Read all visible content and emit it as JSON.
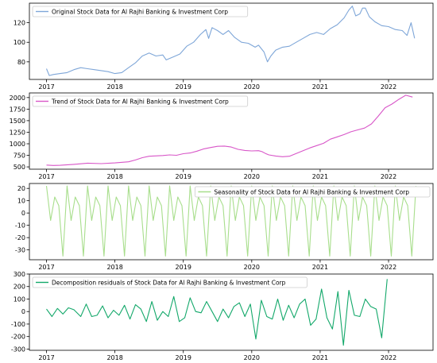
{
  "chart_data": [
    {
      "type": "line",
      "series": [
        {
          "name": "Original Stock Data for Al Rajhi Banking & Investment Corp",
          "color": "#7ea6d8"
        }
      ],
      "x_ticks": [
        "2017",
        "2018",
        "2019",
        "2020",
        "2021",
        "2022"
      ],
      "y_ticks": [
        "80",
        "100",
        "120"
      ],
      "xlim": [
        2016.75,
        2022.65
      ],
      "ylim": [
        62,
        140
      ],
      "legend": "upper-left",
      "points": [
        [
          2017.0,
          73
        ],
        [
          2017.04,
          66
        ],
        [
          2017.1,
          67
        ],
        [
          2017.2,
          68
        ],
        [
          2017.3,
          69
        ],
        [
          2017.4,
          72
        ],
        [
          2017.5,
          74
        ],
        [
          2017.6,
          73
        ],
        [
          2017.7,
          72
        ],
        [
          2017.8,
          71
        ],
        [
          2017.9,
          70
        ],
        [
          2018.0,
          68
        ],
        [
          2018.1,
          69
        ],
        [
          2018.2,
          74
        ],
        [
          2018.3,
          79
        ],
        [
          2018.4,
          86
        ],
        [
          2018.5,
          89
        ],
        [
          2018.6,
          86
        ],
        [
          2018.7,
          87
        ],
        [
          2018.75,
          82
        ],
        [
          2018.85,
          85
        ],
        [
          2018.95,
          88
        ],
        [
          2019.05,
          96
        ],
        [
          2019.15,
          100
        ],
        [
          2019.25,
          108
        ],
        [
          2019.33,
          113
        ],
        [
          2019.37,
          104
        ],
        [
          2019.42,
          115
        ],
        [
          2019.5,
          112
        ],
        [
          2019.58,
          108
        ],
        [
          2019.66,
          112
        ],
        [
          2019.75,
          105
        ],
        [
          2019.85,
          100
        ],
        [
          2019.95,
          99
        ],
        [
          2020.05,
          95
        ],
        [
          2020.1,
          97
        ],
        [
          2020.18,
          90
        ],
        [
          2020.23,
          80
        ],
        [
          2020.28,
          86
        ],
        [
          2020.35,
          92
        ],
        [
          2020.45,
          95
        ],
        [
          2020.55,
          96
        ],
        [
          2020.65,
          100
        ],
        [
          2020.75,
          104
        ],
        [
          2020.85,
          108
        ],
        [
          2020.95,
          110
        ],
        [
          2021.05,
          108
        ],
        [
          2021.15,
          114
        ],
        [
          2021.25,
          118
        ],
        [
          2021.35,
          125
        ],
        [
          2021.42,
          133
        ],
        [
          2021.47,
          137
        ],
        [
          2021.52,
          127
        ],
        [
          2021.58,
          129
        ],
        [
          2021.62,
          135
        ],
        [
          2021.66,
          135
        ],
        [
          2021.72,
          126
        ],
        [
          2021.8,
          121
        ],
        [
          2021.9,
          117
        ],
        [
          2022.0,
          116
        ],
        [
          2022.1,
          113
        ],
        [
          2022.2,
          112
        ],
        [
          2022.27,
          107
        ],
        [
          2022.33,
          120
        ],
        [
          2022.38,
          104
        ]
      ]
    },
    {
      "type": "line",
      "series": [
        {
          "name": "Trend of Stock Data for Al Rajhi Banking & Investment Corp",
          "color": "#d856c8"
        }
      ],
      "x_ticks": [
        "2017",
        "2018",
        "2019",
        "2020",
        "2021",
        "2022"
      ],
      "y_ticks": [
        "500",
        "750",
        "1000",
        "1250",
        "1500",
        "1750",
        "2000"
      ],
      "xlim": [
        2016.75,
        2022.65
      ],
      "ylim": [
        450,
        2100
      ],
      "legend": "upper-left",
      "points": [
        [
          2017.0,
          540
        ],
        [
          2017.1,
          530
        ],
        [
          2017.2,
          535
        ],
        [
          2017.4,
          555
        ],
        [
          2017.6,
          580
        ],
        [
          2017.8,
          570
        ],
        [
          2018.0,
          585
        ],
        [
          2018.2,
          610
        ],
        [
          2018.3,
          650
        ],
        [
          2018.4,
          700
        ],
        [
          2018.5,
          730
        ],
        [
          2018.7,
          745
        ],
        [
          2018.8,
          760
        ],
        [
          2018.9,
          750
        ],
        [
          2019.0,
          785
        ],
        [
          2019.1,
          800
        ],
        [
          2019.2,
          840
        ],
        [
          2019.3,
          890
        ],
        [
          2019.4,
          920
        ],
        [
          2019.5,
          945
        ],
        [
          2019.6,
          950
        ],
        [
          2019.7,
          930
        ],
        [
          2019.8,
          880
        ],
        [
          2019.9,
          855
        ],
        [
          2020.0,
          845
        ],
        [
          2020.1,
          850
        ],
        [
          2020.15,
          830
        ],
        [
          2020.2,
          790
        ],
        [
          2020.25,
          760
        ],
        [
          2020.35,
          735
        ],
        [
          2020.45,
          720
        ],
        [
          2020.55,
          730
        ],
        [
          2020.65,
          790
        ],
        [
          2020.75,
          850
        ],
        [
          2020.85,
          910
        ],
        [
          2020.95,
          960
        ],
        [
          2021.05,
          1010
        ],
        [
          2021.15,
          1100
        ],
        [
          2021.25,
          1150
        ],
        [
          2021.35,
          1200
        ],
        [
          2021.45,
          1260
        ],
        [
          2021.55,
          1300
        ],
        [
          2021.65,
          1340
        ],
        [
          2021.75,
          1430
        ],
        [
          2021.85,
          1600
        ],
        [
          2021.95,
          1780
        ],
        [
          2022.05,
          1860
        ],
        [
          2022.15,
          1960
        ],
        [
          2022.25,
          2050
        ],
        [
          2022.35,
          2010
        ]
      ]
    },
    {
      "type": "line",
      "series": [
        {
          "name": "Seasonality of Stock Data for Al Rajhi Banking & Investment Corp",
          "color": "#a8de8c"
        }
      ],
      "x_ticks": [
        "2017",
        "2018",
        "2019",
        "2020",
        "2021",
        "2022"
      ],
      "y_ticks": [
        "20",
        "10",
        "0",
        "-10",
        "-20",
        "-30"
      ],
      "xlim": [
        2016.75,
        2022.65
      ],
      "ylim": [
        -38,
        24
      ],
      "legend": "upper-right",
      "period_pattern": [
        22,
        -6,
        13,
        6,
        -35,
        22,
        -6,
        13,
        6,
        -35
      ],
      "points": []
    },
    {
      "type": "line",
      "series": [
        {
          "name": "Decomposition residuals of Stock Data for Al Rajhi Banking & Investment Corp",
          "color": "#13a86a"
        }
      ],
      "x_ticks": [
        "2017",
        "2018",
        "2019",
        "2020",
        "2021",
        "2022"
      ],
      "y_ticks": [
        "300",
        "200",
        "100",
        "0",
        "-100",
        "-200",
        "-300"
      ],
      "xlim": [
        2016.75,
        2022.65
      ],
      "ylim": [
        -310,
        300
      ],
      "legend": "upper-left",
      "points": [
        [
          2017.0,
          20
        ],
        [
          2017.08,
          -40
        ],
        [
          2017.16,
          25
        ],
        [
          2017.24,
          -20
        ],
        [
          2017.32,
          30
        ],
        [
          2017.4,
          15
        ],
        [
          2017.5,
          -40
        ],
        [
          2017.58,
          60
        ],
        [
          2017.66,
          -40
        ],
        [
          2017.74,
          -30
        ],
        [
          2017.82,
          45
        ],
        [
          2017.9,
          -50
        ],
        [
          2017.98,
          10
        ],
        [
          2018.06,
          -30
        ],
        [
          2018.14,
          50
        ],
        [
          2018.22,
          -60
        ],
        [
          2018.3,
          55
        ],
        [
          2018.38,
          20
        ],
        [
          2018.46,
          -80
        ],
        [
          2018.54,
          80
        ],
        [
          2018.62,
          -70
        ],
        [
          2018.7,
          0
        ],
        [
          2018.78,
          -40
        ],
        [
          2018.86,
          120
        ],
        [
          2018.94,
          -80
        ],
        [
          2019.02,
          -50
        ],
        [
          2019.1,
          110
        ],
        [
          2019.18,
          0
        ],
        [
          2019.26,
          -10
        ],
        [
          2019.34,
          80
        ],
        [
          2019.42,
          0
        ],
        [
          2019.5,
          -80
        ],
        [
          2019.58,
          20
        ],
        [
          2019.66,
          -50
        ],
        [
          2019.74,
          40
        ],
        [
          2019.82,
          70
        ],
        [
          2019.9,
          -40
        ],
        [
          2019.98,
          60
        ],
        [
          2020.06,
          -220
        ],
        [
          2020.14,
          90
        ],
        [
          2020.22,
          -40
        ],
        [
          2020.3,
          -60
        ],
        [
          2020.38,
          100
        ],
        [
          2020.46,
          -70
        ],
        [
          2020.54,
          50
        ],
        [
          2020.62,
          -50
        ],
        [
          2020.7,
          60
        ],
        [
          2020.78,
          100
        ],
        [
          2020.86,
          -110
        ],
        [
          2020.94,
          -60
        ],
        [
          2021.02,
          180
        ],
        [
          2021.1,
          -50
        ],
        [
          2021.18,
          -140
        ],
        [
          2021.26,
          160
        ],
        [
          2021.34,
          -270
        ],
        [
          2021.42,
          170
        ],
        [
          2021.5,
          -30
        ],
        [
          2021.58,
          -40
        ],
        [
          2021.66,
          100
        ],
        [
          2021.74,
          40
        ],
        [
          2021.82,
          20
        ],
        [
          2021.9,
          -210
        ],
        [
          2021.98,
          260
        ]
      ]
    }
  ]
}
